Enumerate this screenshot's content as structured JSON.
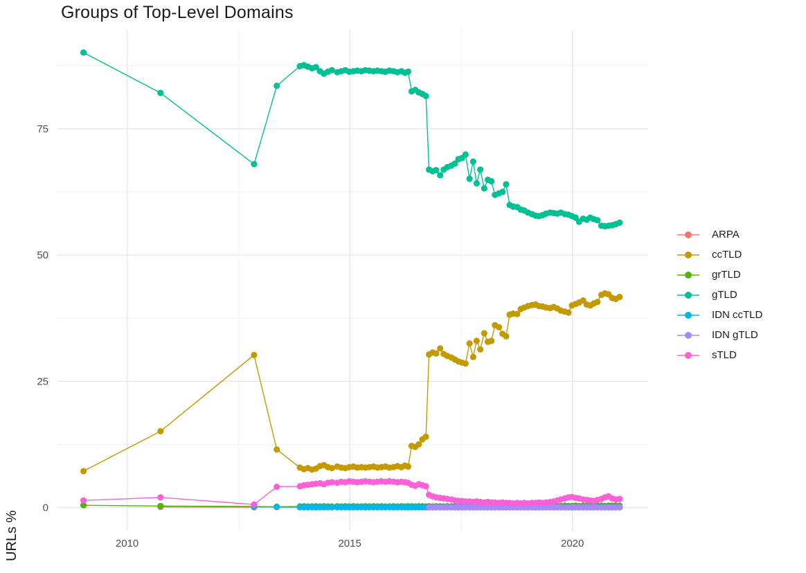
{
  "chart_data": {
    "type": "line",
    "title": "Groups of Top-Level Domains",
    "xlabel": "",
    "ylabel": "URLs %",
    "grid": true,
    "legend_position": "right",
    "xlim": [
      2008.42,
      2021.7
    ],
    "ylim": [
      -4.6,
      94.6
    ],
    "x_ticks": {
      "values": [
        2010,
        2015,
        2020
      ],
      "labels": [
        "2010",
        "2015",
        "2020"
      ],
      "minor": [
        2012.5,
        2017.5
      ]
    },
    "y_ticks": {
      "values": [
        0,
        25,
        50,
        75
      ],
      "labels": [
        "0",
        "25",
        "50",
        "75"
      ],
      "minor": [
        12.5,
        37.5,
        62.5,
        87.5
      ]
    },
    "grid_major_color": "#e7e7e7",
    "grid_minor_color": "#f0f0f0",
    "tick_label_color": "#4d4d4d",
    "series": [
      {
        "name": "ARPA",
        "color": "#F8766D",
        "x": [
          2010.75,
          2012.85
        ],
        "y": [
          0.1,
          0.05
        ]
      },
      {
        "name": "ccTLD",
        "color": "#C49A00",
        "x": [
          2009.02,
          2010.75,
          2012.85,
          2013.36,
          2013.88,
          2013.97,
          2014.06,
          2014.15,
          2014.24,
          2014.33,
          2014.42,
          2014.51,
          2014.6,
          2014.72,
          2014.81,
          2014.9,
          2014.99,
          2015.08,
          2015.17,
          2015.26,
          2015.35,
          2015.44,
          2015.53,
          2015.62,
          2015.71,
          2015.8,
          2015.89,
          2015.98,
          2016.07,
          2016.16,
          2016.24,
          2016.31,
          2016.39,
          2016.47,
          2016.55,
          2016.63,
          2016.71,
          2016.78,
          2016.86,
          2016.94,
          2017.03,
          2017.11,
          2017.19,
          2017.28,
          2017.36,
          2017.44,
          2017.52,
          2017.6,
          2017.69,
          2017.77,
          2017.85,
          2017.93,
          2018.02,
          2018.1,
          2018.18,
          2018.26,
          2018.35,
          2018.43,
          2018.51,
          2018.59,
          2018.67,
          2018.76,
          2018.84,
          2018.92,
          2019.0,
          2019.09,
          2019.17,
          2019.25,
          2019.33,
          2019.41,
          2019.5,
          2019.58,
          2019.66,
          2019.74,
          2019.83,
          2019.91,
          2019.99,
          2020.07,
          2020.15,
          2020.24,
          2020.32,
          2020.4,
          2020.48,
          2020.56,
          2020.65,
          2020.73,
          2020.81,
          2020.89,
          2020.97,
          2021.06
        ],
        "y": [
          7.2,
          15.1,
          30.2,
          11.5,
          7.9,
          7.6,
          7.8,
          7.5,
          7.7,
          8.2,
          8.4,
          8.0,
          7.8,
          8.1,
          7.9,
          7.8,
          8.0,
          8.1,
          7.9,
          8.0,
          7.9,
          8.0,
          8.1,
          7.9,
          8.0,
          8.1,
          7.9,
          8.0,
          8.2,
          8.0,
          8.3,
          8.1,
          12.2,
          12.0,
          12.5,
          13.5,
          14.0,
          30.3,
          30.7,
          30.5,
          31.5,
          30.4,
          30.0,
          29.7,
          29.3,
          28.9,
          28.7,
          28.5,
          32.5,
          29.8,
          33.0,
          31.3,
          34.5,
          32.8,
          33.0,
          36.1,
          35.7,
          34.4,
          33.9,
          38.2,
          38.4,
          38.3,
          39.3,
          39.6,
          39.9,
          40.1,
          40.2,
          39.9,
          39.8,
          39.6,
          39.5,
          39.7,
          39.4,
          39.0,
          38.8,
          38.6,
          40.0,
          40.3,
          40.6,
          41.0,
          40.2,
          40.0,
          40.4,
          40.7,
          42.1,
          42.4,
          42.2,
          41.5,
          41.3,
          41.7
        ]
      },
      {
        "name": "grTLD",
        "color": "#53B400",
        "x": [
          2009.02,
          2010.75,
          2012.85,
          2013.36,
          2013.88,
          2013.97,
          2014.06,
          2014.15,
          2014.24,
          2014.33,
          2014.42,
          2014.51,
          2014.6,
          2014.72,
          2014.81,
          2014.9,
          2014.99,
          2015.08,
          2015.17,
          2015.26,
          2015.35,
          2015.44,
          2015.53,
          2015.62,
          2015.71,
          2015.8,
          2015.89,
          2015.98,
          2016.07,
          2016.16,
          2016.24,
          2016.31,
          2016.39,
          2016.47,
          2016.55,
          2016.63,
          2016.71,
          2016.78,
          2016.86,
          2016.94,
          2017.03,
          2017.11,
          2017.19,
          2017.28,
          2017.36,
          2017.44,
          2017.52,
          2017.6,
          2017.69,
          2017.77,
          2017.85,
          2017.93,
          2018.02,
          2018.1,
          2018.18,
          2018.26,
          2018.35,
          2018.43,
          2018.51,
          2018.59,
          2018.67,
          2018.76,
          2018.84,
          2018.92,
          2019.0,
          2019.09,
          2019.17,
          2019.25,
          2019.33,
          2019.41,
          2019.5,
          2019.58,
          2019.66,
          2019.74,
          2019.83,
          2019.91,
          2019.99,
          2020.07,
          2020.15,
          2020.24,
          2020.32,
          2020.4,
          2020.48,
          2020.56,
          2020.65,
          2020.73,
          2020.81,
          2020.89,
          2020.97,
          2021.06
        ],
        "y": [
          0.45,
          0.3,
          0.2,
          0.15,
          0.2,
          0.25,
          0.2,
          0.2,
          0.25,
          0.2,
          0.25,
          0.2,
          0.2,
          0.25,
          0.2,
          0.25,
          0.2,
          0.25,
          0.2,
          0.2,
          0.25,
          0.2,
          0.25,
          0.2,
          0.25,
          0.2,
          0.2,
          0.25,
          0.2,
          0.25,
          0.2,
          0.25,
          0.25,
          0.2,
          0.25,
          0.25,
          0.2,
          0.25,
          0.2,
          0.25,
          0.25,
          0.2,
          0.25,
          0.25,
          0.2,
          0.25,
          0.25,
          0.25,
          0.2,
          0.25,
          0.25,
          0.25,
          0.3,
          0.25,
          0.25,
          0.3,
          0.25,
          0.25,
          0.3,
          0.25,
          0.3,
          0.25,
          0.3,
          0.25,
          0.3,
          0.3,
          0.25,
          0.3,
          0.3,
          0.25,
          0.3,
          0.3,
          0.3,
          0.3,
          0.35,
          0.3,
          0.3,
          0.35,
          0.3,
          0.35,
          0.3,
          0.35,
          0.3,
          0.35,
          0.35,
          0.3,
          0.35,
          0.35,
          0.35,
          0.35
        ]
      },
      {
        "name": "gTLD",
        "color": "#00C094",
        "x": [
          2009.02,
          2010.75,
          2012.85,
          2013.36,
          2013.88,
          2013.97,
          2014.06,
          2014.15,
          2014.24,
          2014.33,
          2014.42,
          2014.51,
          2014.6,
          2014.72,
          2014.81,
          2014.9,
          2014.99,
          2015.08,
          2015.17,
          2015.26,
          2015.35,
          2015.44,
          2015.53,
          2015.62,
          2015.71,
          2015.8,
          2015.89,
          2015.98,
          2016.07,
          2016.16,
          2016.24,
          2016.31,
          2016.39,
          2016.47,
          2016.55,
          2016.63,
          2016.71,
          2016.78,
          2016.86,
          2016.94,
          2017.03,
          2017.11,
          2017.19,
          2017.28,
          2017.36,
          2017.44,
          2017.52,
          2017.6,
          2017.69,
          2017.77,
          2017.85,
          2017.93,
          2018.02,
          2018.1,
          2018.18,
          2018.26,
          2018.35,
          2018.43,
          2018.51,
          2018.59,
          2018.67,
          2018.76,
          2018.84,
          2018.92,
          2019.0,
          2019.09,
          2019.17,
          2019.25,
          2019.33,
          2019.41,
          2019.5,
          2019.58,
          2019.66,
          2019.74,
          2019.83,
          2019.91,
          2019.99,
          2020.07,
          2020.15,
          2020.24,
          2020.32,
          2020.4,
          2020.48,
          2020.56,
          2020.65,
          2020.73,
          2020.81,
          2020.89,
          2020.97,
          2021.06
        ],
        "y": [
          90.1,
          82.1,
          68.0,
          83.5,
          87.4,
          87.6,
          87.3,
          87.0,
          87.2,
          86.4,
          85.9,
          86.3,
          86.6,
          86.2,
          86.4,
          86.6,
          86.3,
          86.4,
          86.5,
          86.4,
          86.6,
          86.5,
          86.4,
          86.5,
          86.4,
          86.3,
          86.5,
          86.4,
          86.2,
          86.4,
          86.1,
          86.3,
          82.4,
          82.7,
          82.2,
          81.9,
          81.5,
          66.9,
          66.6,
          66.8,
          65.8,
          66.9,
          67.4,
          67.7,
          68.1,
          69.0,
          69.2,
          69.9,
          65.1,
          68.5,
          64.2,
          66.9,
          63.2,
          64.9,
          64.6,
          61.9,
          62.2,
          62.5,
          64.0,
          59.9,
          59.6,
          59.5,
          59.0,
          58.8,
          58.4,
          58.1,
          57.8,
          57.7,
          57.9,
          58.2,
          58.4,
          58.3,
          58.2,
          58.4,
          58.1,
          58.0,
          57.7,
          57.4,
          56.6,
          57.2,
          57.0,
          57.4,
          57.1,
          56.9,
          55.8,
          55.7,
          55.8,
          55.9,
          56.1,
          56.4
        ]
      },
      {
        "name": "IDN ccTLD",
        "color": "#00B6EB",
        "x": [
          2012.85,
          2013.36,
          2013.88,
          2013.97,
          2014.06,
          2014.15,
          2014.24,
          2014.33,
          2014.42,
          2014.51,
          2014.6,
          2014.72,
          2014.81,
          2014.9,
          2014.99,
          2015.08,
          2015.17,
          2015.26,
          2015.35,
          2015.44,
          2015.53,
          2015.62,
          2015.71,
          2015.8,
          2015.89,
          2015.98,
          2016.07,
          2016.16,
          2016.24,
          2016.31,
          2016.39,
          2016.47,
          2016.55,
          2016.63,
          2016.71,
          2016.78,
          2016.86,
          2016.94,
          2017.03,
          2017.11,
          2017.19,
          2017.28,
          2017.36,
          2017.44,
          2017.52,
          2017.6,
          2017.69,
          2017.77,
          2017.85,
          2017.93,
          2018.02,
          2018.1,
          2018.18,
          2018.26,
          2018.35,
          2018.43,
          2018.51,
          2018.59,
          2018.67,
          2018.76,
          2018.84,
          2018.92,
          2019.0,
          2019.09,
          2019.17,
          2019.25,
          2019.33,
          2019.41,
          2019.5,
          2019.58,
          2019.66,
          2019.74,
          2019.83,
          2019.91,
          2019.99,
          2020.07,
          2020.15,
          2020.24,
          2020.32,
          2020.4,
          2020.48,
          2020.56,
          2020.65,
          2020.73,
          2020.81,
          2020.89,
          2020.97,
          2021.06
        ],
        "y": [
          0.12,
          0.08,
          0.05,
          0.05,
          0.05,
          0.05,
          0.05,
          0.05,
          0.05,
          0.05,
          0.05,
          0.05,
          0.05,
          0.05,
          0.05,
          0.05,
          0.05,
          0.05,
          0.05,
          0.05,
          0.05,
          0.05,
          0.05,
          0.05,
          0.05,
          0.05,
          0.05,
          0.05,
          0.05,
          0.05,
          0.05,
          0.05,
          0.05,
          0.05,
          0.05,
          0.05,
          0.05,
          0.05,
          0.05,
          0.05,
          0.05,
          0.05,
          0.05,
          0.05,
          0.05,
          0.05,
          0.05,
          0.05,
          0.05,
          0.05,
          0.05,
          0.05,
          0.05,
          0.05,
          0.05,
          0.05,
          0.05,
          0.05,
          0.05,
          0.05,
          0.05,
          0.05,
          0.05,
          0.05,
          0.05,
          0.05,
          0.05,
          0.05,
          0.05,
          0.05,
          0.05,
          0.05,
          0.05,
          0.05,
          0.05,
          0.05,
          0.05,
          0.05,
          0.05,
          0.05,
          0.05,
          0.05,
          0.05,
          0.05,
          0.05,
          0.05,
          0.05,
          0.05
        ]
      },
      {
        "name": "IDN gTLD",
        "color": "#A58AFF",
        "x": [
          2016.78,
          2016.86,
          2016.94,
          2017.03,
          2017.11,
          2017.19,
          2017.28,
          2017.36,
          2017.44,
          2017.52,
          2017.6,
          2017.69,
          2017.77,
          2017.85,
          2017.93,
          2018.02,
          2018.1,
          2018.18,
          2018.26,
          2018.35,
          2018.43,
          2018.51,
          2018.59,
          2018.67,
          2018.76,
          2018.84,
          2018.92,
          2019.0,
          2019.09,
          2019.17,
          2019.25,
          2019.33,
          2019.41,
          2019.5,
          2019.58,
          2019.66,
          2019.74,
          2019.83,
          2019.91,
          2019.99,
          2020.07,
          2020.15,
          2020.24,
          2020.32,
          2020.4,
          2020.48,
          2020.56,
          2020.65,
          2020.73,
          2020.81,
          2020.89,
          2020.97,
          2021.06
        ],
        "y": [
          0.02,
          0.02,
          0.02,
          0.02,
          0.02,
          0.02,
          0.02,
          0.02,
          0.02,
          0.02,
          0.02,
          0.02,
          0.02,
          0.02,
          0.02,
          0.02,
          0.02,
          0.02,
          0.02,
          0.02,
          0.02,
          0.02,
          0.02,
          0.02,
          0.02,
          0.02,
          0.02,
          0.02,
          0.02,
          0.02,
          0.02,
          0.02,
          0.02,
          0.02,
          0.02,
          0.02,
          0.02,
          0.02,
          0.02,
          0.02,
          0.02,
          0.02,
          0.02,
          0.02,
          0.02,
          0.02,
          0.02,
          0.02,
          0.02,
          0.02,
          0.02,
          0.02,
          0.02
        ]
      },
      {
        "name": "sTLD",
        "color": "#FB61D7",
        "x": [
          2009.02,
          2010.75,
          2012.85,
          2013.36,
          2013.88,
          2013.97,
          2014.06,
          2014.15,
          2014.24,
          2014.33,
          2014.42,
          2014.51,
          2014.6,
          2014.72,
          2014.81,
          2014.9,
          2014.99,
          2015.08,
          2015.17,
          2015.26,
          2015.35,
          2015.44,
          2015.53,
          2015.62,
          2015.71,
          2015.8,
          2015.89,
          2015.98,
          2016.07,
          2016.16,
          2016.24,
          2016.31,
          2016.39,
          2016.47,
          2016.55,
          2016.63,
          2016.71,
          2016.78,
          2016.86,
          2016.94,
          2017.03,
          2017.11,
          2017.19,
          2017.28,
          2017.36,
          2017.44,
          2017.52,
          2017.6,
          2017.69,
          2017.77,
          2017.85,
          2017.93,
          2018.02,
          2018.1,
          2018.18,
          2018.26,
          2018.35,
          2018.43,
          2018.51,
          2018.59,
          2018.67,
          2018.76,
          2018.84,
          2018.92,
          2019.0,
          2019.09,
          2019.17,
          2019.25,
          2019.33,
          2019.41,
          2019.5,
          2019.58,
          2019.66,
          2019.74,
          2019.83,
          2019.91,
          2019.99,
          2020.07,
          2020.15,
          2020.24,
          2020.32,
          2020.4,
          2020.48,
          2020.56,
          2020.65,
          2020.73,
          2020.81,
          2020.89,
          2020.97,
          2021.06
        ],
        "y": [
          1.4,
          2.0,
          0.6,
          4.1,
          4.2,
          4.4,
          4.5,
          4.6,
          4.7,
          4.8,
          4.6,
          4.9,
          5.0,
          4.9,
          5.1,
          5.0,
          5.2,
          5.1,
          5.0,
          5.1,
          5.2,
          5.1,
          5.0,
          5.1,
          5.2,
          5.1,
          5.2,
          5.1,
          5.0,
          5.1,
          5.0,
          4.9,
          4.5,
          4.3,
          4.6,
          4.4,
          4.2,
          2.5,
          2.2,
          2.0,
          1.9,
          1.8,
          1.7,
          1.6,
          1.4,
          1.3,
          1.3,
          1.2,
          1.2,
          1.1,
          1.2,
          1.1,
          1.0,
          1.1,
          1.0,
          1.0,
          0.9,
          1.0,
          0.9,
          0.9,
          0.8,
          0.9,
          0.8,
          0.9,
          0.8,
          0.9,
          0.9,
          1.0,
          0.9,
          1.0,
          1.1,
          1.2,
          1.4,
          1.6,
          1.8,
          2.0,
          2.1,
          1.9,
          1.8,
          1.6,
          1.5,
          1.4,
          1.3,
          1.5,
          1.7,
          2.0,
          2.2,
          1.8,
          1.6,
          1.7
        ]
      }
    ]
  }
}
